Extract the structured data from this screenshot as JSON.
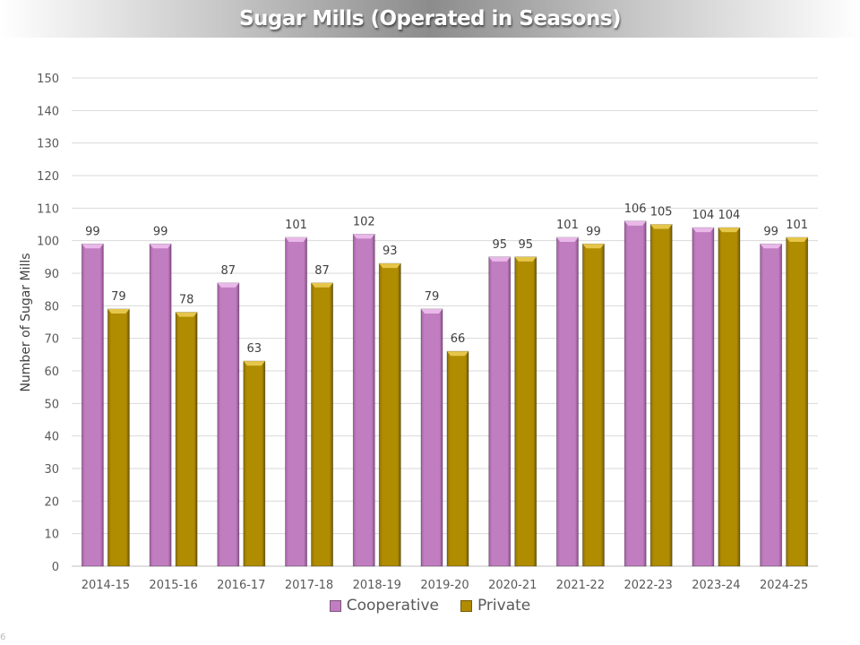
{
  "chart_data": {
    "type": "bar",
    "title": "Sugar Mills (Operated in Seasons)",
    "xlabel": "",
    "ylabel": "Number of Sugar Mills",
    "ylim": [
      0,
      150
    ],
    "yticks": [
      0,
      10,
      20,
      30,
      40,
      50,
      60,
      70,
      80,
      90,
      100,
      110,
      120,
      130,
      140,
      150
    ],
    "grid": true,
    "legend_position": "bottom",
    "categories": [
      "2014-15",
      "2015-16",
      "2016-17",
      "2017-18",
      "2018-19",
      "2019-20",
      "2020-21",
      "2021-22",
      "2022-23",
      "2023-24",
      "2024-25"
    ],
    "series": [
      {
        "name": "Cooperative",
        "color": "#C07EC0",
        "values": [
          99,
          99,
          87,
          101,
          102,
          79,
          95,
          101,
          106,
          104,
          99
        ]
      },
      {
        "name": "Private",
        "color": "#B08C00",
        "values": [
          79,
          78,
          63,
          87,
          93,
          66,
          95,
          99,
          105,
          104,
          101
        ]
      }
    ]
  },
  "footnote": "6"
}
